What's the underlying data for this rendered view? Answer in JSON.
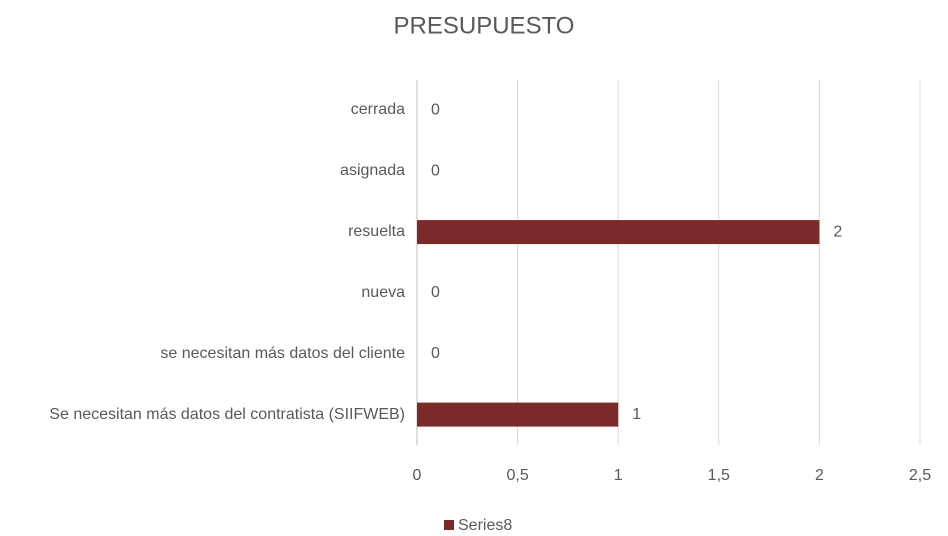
{
  "chart_data": {
    "type": "bar",
    "orientation": "horizontal",
    "title": "PRESUPUESTO",
    "categories": [
      "cerrada",
      "asignada",
      "resuelta",
      "nueva",
      "se necesitan más datos del cliente",
      "Se necesitan más datos del contratista (SIIFWEB)"
    ],
    "series": [
      {
        "name": "Series8",
        "color": "#7b2a2a",
        "values": [
          0,
          0,
          2,
          0,
          0,
          1
        ]
      }
    ],
    "xlim": [
      0,
      2.5
    ],
    "xticks": [
      0,
      {
        "value": 0.5,
        "label": "0,5"
      },
      1,
      {
        "value": 1.5,
        "label": "1,5"
      },
      2,
      {
        "value": 2.5,
        "label": "2,5"
      }
    ],
    "grid": true,
    "legend": "bottom"
  }
}
